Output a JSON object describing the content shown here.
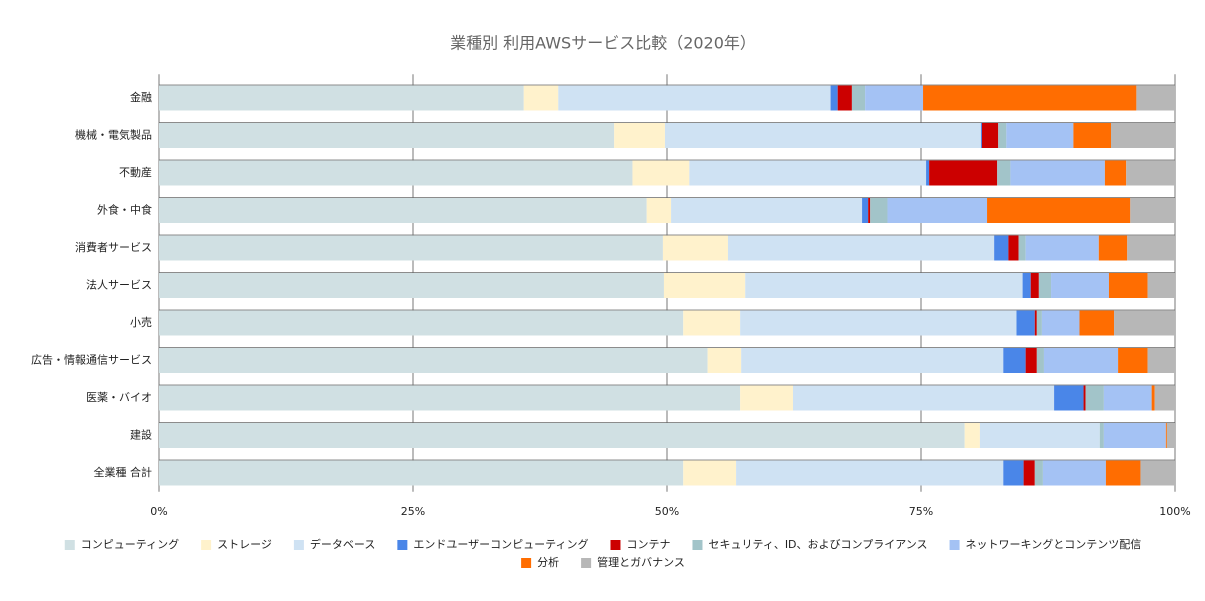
{
  "chart_data": {
    "type": "stacked-barh",
    "title": "業種別 利用AWSサービス比較（2020年）",
    "categories": [
      "金融",
      "機械・電気製品",
      "不動産",
      "外食・中食",
      "消費者サービス",
      "法人サービス",
      "小売",
      "広告・情報通信サービス",
      "医薬・バイオ",
      "建設",
      "全業種 合計"
    ],
    "series": [
      {
        "name": "コンピューティング",
        "color": "#d0e0e3",
        "values": [
          35.9,
          44.8,
          46.6,
          48.0,
          49.6,
          49.7,
          51.6,
          54.0,
          57.2,
          79.3,
          51.6
        ]
      },
      {
        "name": "ストレージ",
        "color": "#fff2cc",
        "values": [
          3.4,
          5.0,
          5.6,
          2.4,
          6.4,
          8.0,
          5.6,
          3.3,
          5.2,
          1.5,
          5.2
        ]
      },
      {
        "name": "データベース",
        "color": "#cfe2f3",
        "values": [
          26.8,
          31.1,
          23.3,
          18.8,
          26.2,
          27.3,
          27.2,
          25.8,
          25.7,
          11.8,
          26.3
        ]
      },
      {
        "name": "エンドユーザーコンピューティング",
        "color": "#4a86e8",
        "values": [
          0.7,
          0.1,
          0.3,
          0.6,
          1.4,
          0.8,
          1.8,
          2.2,
          2.9,
          0,
          2.0
        ]
      },
      {
        "name": "コンテナ",
        "color": "#cc0000",
        "values": [
          1.4,
          1.6,
          6.7,
          0.2,
          1.0,
          0.8,
          0.2,
          1.1,
          0.2,
          0,
          1.1
        ]
      },
      {
        "name": "セキュリティ、ID、およびコンプライアンス",
        "color": "#a2c4c9",
        "values": [
          1.3,
          0.8,
          1.3,
          1.7,
          0.7,
          1.2,
          0.5,
          0.7,
          1.8,
          0.4,
          0.8
        ]
      },
      {
        "name": "ネットワーキングとコンテンツ配信",
        "color": "#a4c2f4",
        "values": [
          5.7,
          6.6,
          9.3,
          9.8,
          7.2,
          5.7,
          3.7,
          7.3,
          4.7,
          6.1,
          6.2
        ]
      },
      {
        "name": "分析",
        "color": "#ff6d01",
        "values": [
          21.0,
          3.7,
          2.1,
          14.1,
          2.8,
          3.8,
          3.4,
          2.9,
          0.3,
          0.1,
          3.4
        ]
      },
      {
        "name": "管理とガバナンス",
        "color": "#b7b7b7",
        "values": [
          3.8,
          6.3,
          4.8,
          4.4,
          4.7,
          2.7,
          6.0,
          2.7,
          2.0,
          0.8,
          3.4
        ]
      }
    ],
    "xlim": [
      0,
      100
    ],
    "xticks": [
      {
        "value": 0,
        "label": "0%"
      },
      {
        "value": 25,
        "label": "25%"
      },
      {
        "value": 50,
        "label": "50%"
      },
      {
        "value": 75,
        "label": "75%"
      },
      {
        "value": 100,
        "label": "100%"
      }
    ],
    "grid": true
  }
}
